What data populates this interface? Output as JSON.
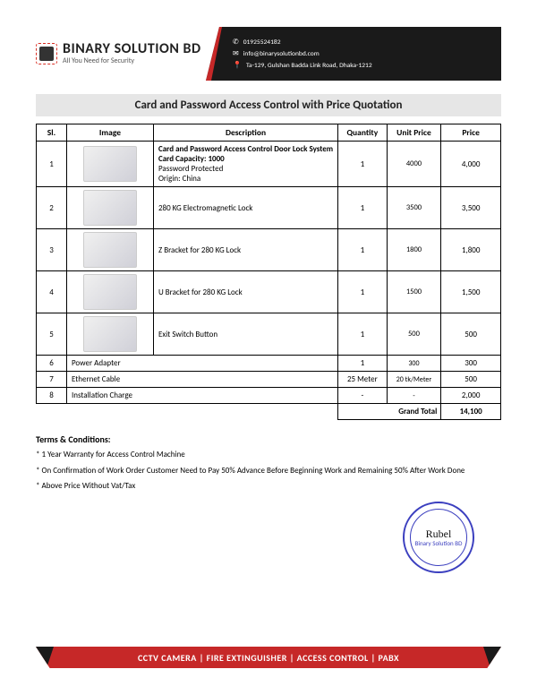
{
  "header": {
    "company": "BINARY SOLUTION BD",
    "tagline": "All You Need for Security",
    "phone": "01925524182",
    "email": "info@binarysolutionbd.com",
    "address": "Ta-129, Gulshan Badda Link Road, Dhaka-1212"
  },
  "title": "Card and Password Access Control with Price Quotation",
  "columns": {
    "sl": "Sl.",
    "image": "Image",
    "desc": "Description",
    "qty": "Quantity",
    "unit": "Unit Price",
    "price": "Price"
  },
  "rows": [
    {
      "sl": "1",
      "desc": "Card and Password Access Control Door Lock System\nCard Capacity: 1000\nPassword Protected\nOrigin: China",
      "qty": "1",
      "unit": "4000",
      "price": "4,000",
      "hasImage": true,
      "boldFirst": true
    },
    {
      "sl": "2",
      "desc": "280 KG Electromagnetic Lock",
      "qty": "1",
      "unit": "3500",
      "price": "3,500",
      "hasImage": true
    },
    {
      "sl": "3",
      "desc": "Z Bracket for 280 KG Lock",
      "qty": "1",
      "unit": "1800",
      "price": "1,800",
      "hasImage": true
    },
    {
      "sl": "4",
      "desc": "U Bracket for 280 KG Lock",
      "qty": "1",
      "unit": "1500",
      "price": "1,500",
      "hasImage": true
    },
    {
      "sl": "5",
      "desc": "Exit Switch Button",
      "qty": "1",
      "unit": "500",
      "price": "500",
      "hasImage": true
    },
    {
      "sl": "6",
      "desc": "Power Adapter",
      "qty": "1",
      "unit": "300",
      "price": "300",
      "hasImage": false
    },
    {
      "sl": "7",
      "desc": "Ethernet Cable",
      "qty": "25 Meter",
      "unit": "20 tk/Meter",
      "price": "500",
      "hasImage": false
    },
    {
      "sl": "8",
      "desc": "Installation Charge",
      "qty": "-",
      "unit": "-",
      "price": "2,000",
      "hasImage": false
    }
  ],
  "grand": {
    "label": "Grand  Total",
    "value": "14,100"
  },
  "terms": {
    "title": "Terms & Conditions:",
    "items": [
      "*  1 Year Warranty for Access Control Machine",
      "* On Confirmation of Work Order Customer Need to Pay 50% Advance Before Beginning Work and Remaining 50% After Work Done",
      "*  Above Price Without Vat/Tax"
    ]
  },
  "stamp": {
    "sig": "Rubel",
    "line2": "Binary Solution BD",
    "ring": "BINARY SOLUTION BD"
  },
  "footer": "CCTV CAMERA  |  FIRE EXTINGUISHER  |  ACCESS CONTROL  |  PABX",
  "colors": {
    "accent_red": "#c62828",
    "dark": "#1a1a1a",
    "title_bg": "#e6e6e6",
    "stamp": "#3b3fbf"
  }
}
